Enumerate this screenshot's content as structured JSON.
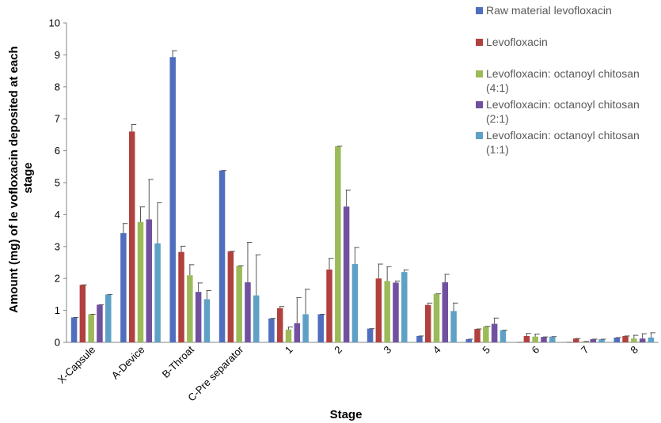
{
  "chart_data": {
    "type": "bar",
    "title": "",
    "xlabel": "Stage",
    "ylabel_lines": [
      "Amount (mg)  of le vofloxacin deposited at each",
      "stage"
    ],
    "ylim": [
      0,
      10
    ],
    "yticks": [
      "0",
      "1",
      "2",
      "3",
      "4",
      "5",
      "6",
      "7",
      "8",
      "9",
      "10"
    ],
    "grid": false,
    "legend_position": "top-right",
    "categories": [
      "X-Capsule",
      "A-Device",
      "B-Throat",
      "C-Pre separator",
      "1",
      "2",
      "3",
      "4",
      "5",
      "6",
      "7",
      "8"
    ],
    "series": [
      {
        "name": "Raw material levofloxacin",
        "legend_lines": [
          "Raw material levofloxacin"
        ],
        "color": "#4F6EBD",
        "values": [
          0.78,
          3.42,
          8.93,
          5.38,
          0.75,
          0.88,
          0.43,
          0.2,
          0.1,
          0.0,
          0.0,
          0.15
        ],
        "errors": [
          0.0,
          0.3,
          0.2,
          0.0,
          0.0,
          0.0,
          0.0,
          0.0,
          0.0,
          0.0,
          0.0,
          0.0
        ]
      },
      {
        "name": "Levofloxacin",
        "legend_lines": [
          "Levofloxacin"
        ],
        "color": "#B0413E",
        "values": [
          1.8,
          6.6,
          2.83,
          2.85,
          1.07,
          2.28,
          2.0,
          1.17,
          0.42,
          0.2,
          0.12,
          0.2
        ],
        "errors": [
          0.0,
          0.22,
          0.18,
          0.0,
          0.05,
          0.35,
          0.45,
          0.06,
          0.0,
          0.08,
          0.0,
          0.0
        ]
      },
      {
        "name": "Levofloxacin: octanoyl chitosan (4:1)",
        "legend_lines": [
          "Levofloxacin: octanoyl chitosan",
          "(4:1)"
        ],
        "color": "#9BBB59",
        "values": [
          0.88,
          3.77,
          2.1,
          2.4,
          0.4,
          6.14,
          1.92,
          1.52,
          0.5,
          0.18,
          0.03,
          0.12
        ],
        "errors": [
          0.0,
          0.47,
          0.33,
          0.0,
          0.08,
          0.0,
          0.45,
          0.0,
          0.0,
          0.08,
          0.0,
          0.1
        ]
      },
      {
        "name": "Levofloxacin: octanoyl chitosan (2:1)",
        "legend_lines": [
          "Levofloxacin: octanoyl chitosan",
          "(2:1)"
        ],
        "color": "#7051A0",
        "values": [
          1.18,
          3.85,
          1.58,
          1.88,
          0.6,
          4.25,
          1.87,
          1.88,
          0.58,
          0.17,
          0.1,
          0.12
        ],
        "errors": [
          0.0,
          1.25,
          0.28,
          1.25,
          0.8,
          0.52,
          0.05,
          0.25,
          0.18,
          0.0,
          0.0,
          0.15
        ]
      },
      {
        "name": "Levofloxacin: octanoyl chitosan (1:1)",
        "legend_lines": [
          "Levofloxacin: octanoyl chitosan",
          "(1:1)"
        ],
        "color": "#5FA1C6",
        "values": [
          1.5,
          3.1,
          1.35,
          1.47,
          0.88,
          2.45,
          2.2,
          0.98,
          0.38,
          0.18,
          0.1,
          0.15
        ],
        "errors": [
          0.0,
          1.27,
          0.27,
          1.27,
          0.78,
          0.52,
          0.07,
          0.25,
          0.0,
          0.0,
          0.0,
          0.15
        ]
      }
    ]
  }
}
